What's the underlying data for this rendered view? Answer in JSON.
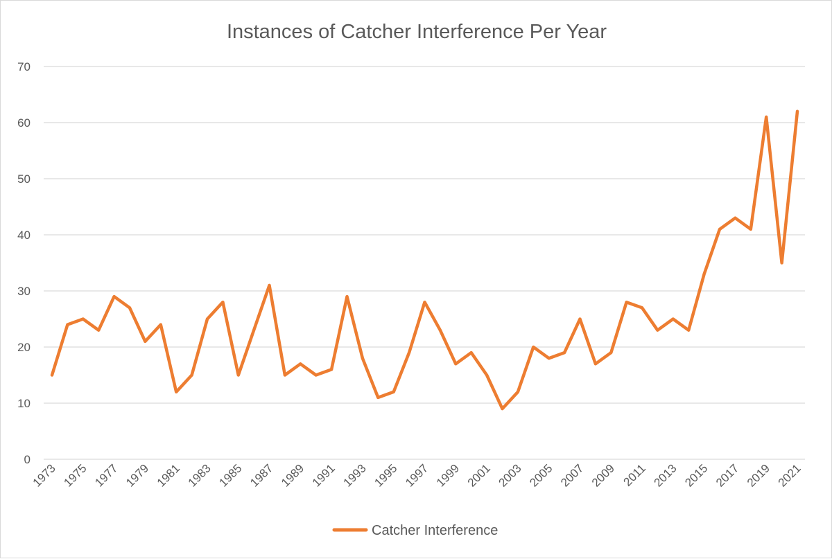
{
  "chart_data": {
    "type": "line",
    "title": "Instances of Catcher Interference Per Year",
    "xlabel": "",
    "ylabel": "",
    "x": [
      1973,
      1974,
      1975,
      1976,
      1977,
      1978,
      1979,
      1980,
      1981,
      1982,
      1983,
      1984,
      1985,
      1986,
      1987,
      1988,
      1989,
      1990,
      1991,
      1992,
      1993,
      1994,
      1995,
      1996,
      1997,
      1998,
      1999,
      2000,
      2001,
      2002,
      2003,
      2004,
      2005,
      2006,
      2007,
      2008,
      2009,
      2010,
      2011,
      2012,
      2013,
      2014,
      2015,
      2016,
      2017,
      2018,
      2019,
      2020,
      2021
    ],
    "x_tick_labels": [
      "1973",
      "1975",
      "1977",
      "1979",
      "1981",
      "1983",
      "1985",
      "1987",
      "1989",
      "1991",
      "1993",
      "1995",
      "1997",
      "1999",
      "2001",
      "2003",
      "2005",
      "2007",
      "2009",
      "2011",
      "2013",
      "2015",
      "2017",
      "2019",
      "2021"
    ],
    "y_tick_labels": [
      "0",
      "10",
      "20",
      "30",
      "40",
      "50",
      "60",
      "70"
    ],
    "ylim": [
      0,
      70
    ],
    "grid": true,
    "legend_position": "bottom",
    "series": [
      {
        "name": "Catcher Interference",
        "color": "#ED7D31",
        "values": [
          15,
          24,
          25,
          23,
          29,
          27,
          21,
          24,
          12,
          15,
          25,
          28,
          15,
          23,
          31,
          15,
          17,
          15,
          16,
          29,
          18,
          11,
          12,
          19,
          28,
          23,
          17,
          19,
          15,
          9,
          12,
          20,
          18,
          19,
          25,
          17,
          19,
          28,
          27,
          23,
          25,
          23,
          33,
          41,
          43,
          41,
          61,
          35,
          62
        ]
      }
    ]
  }
}
